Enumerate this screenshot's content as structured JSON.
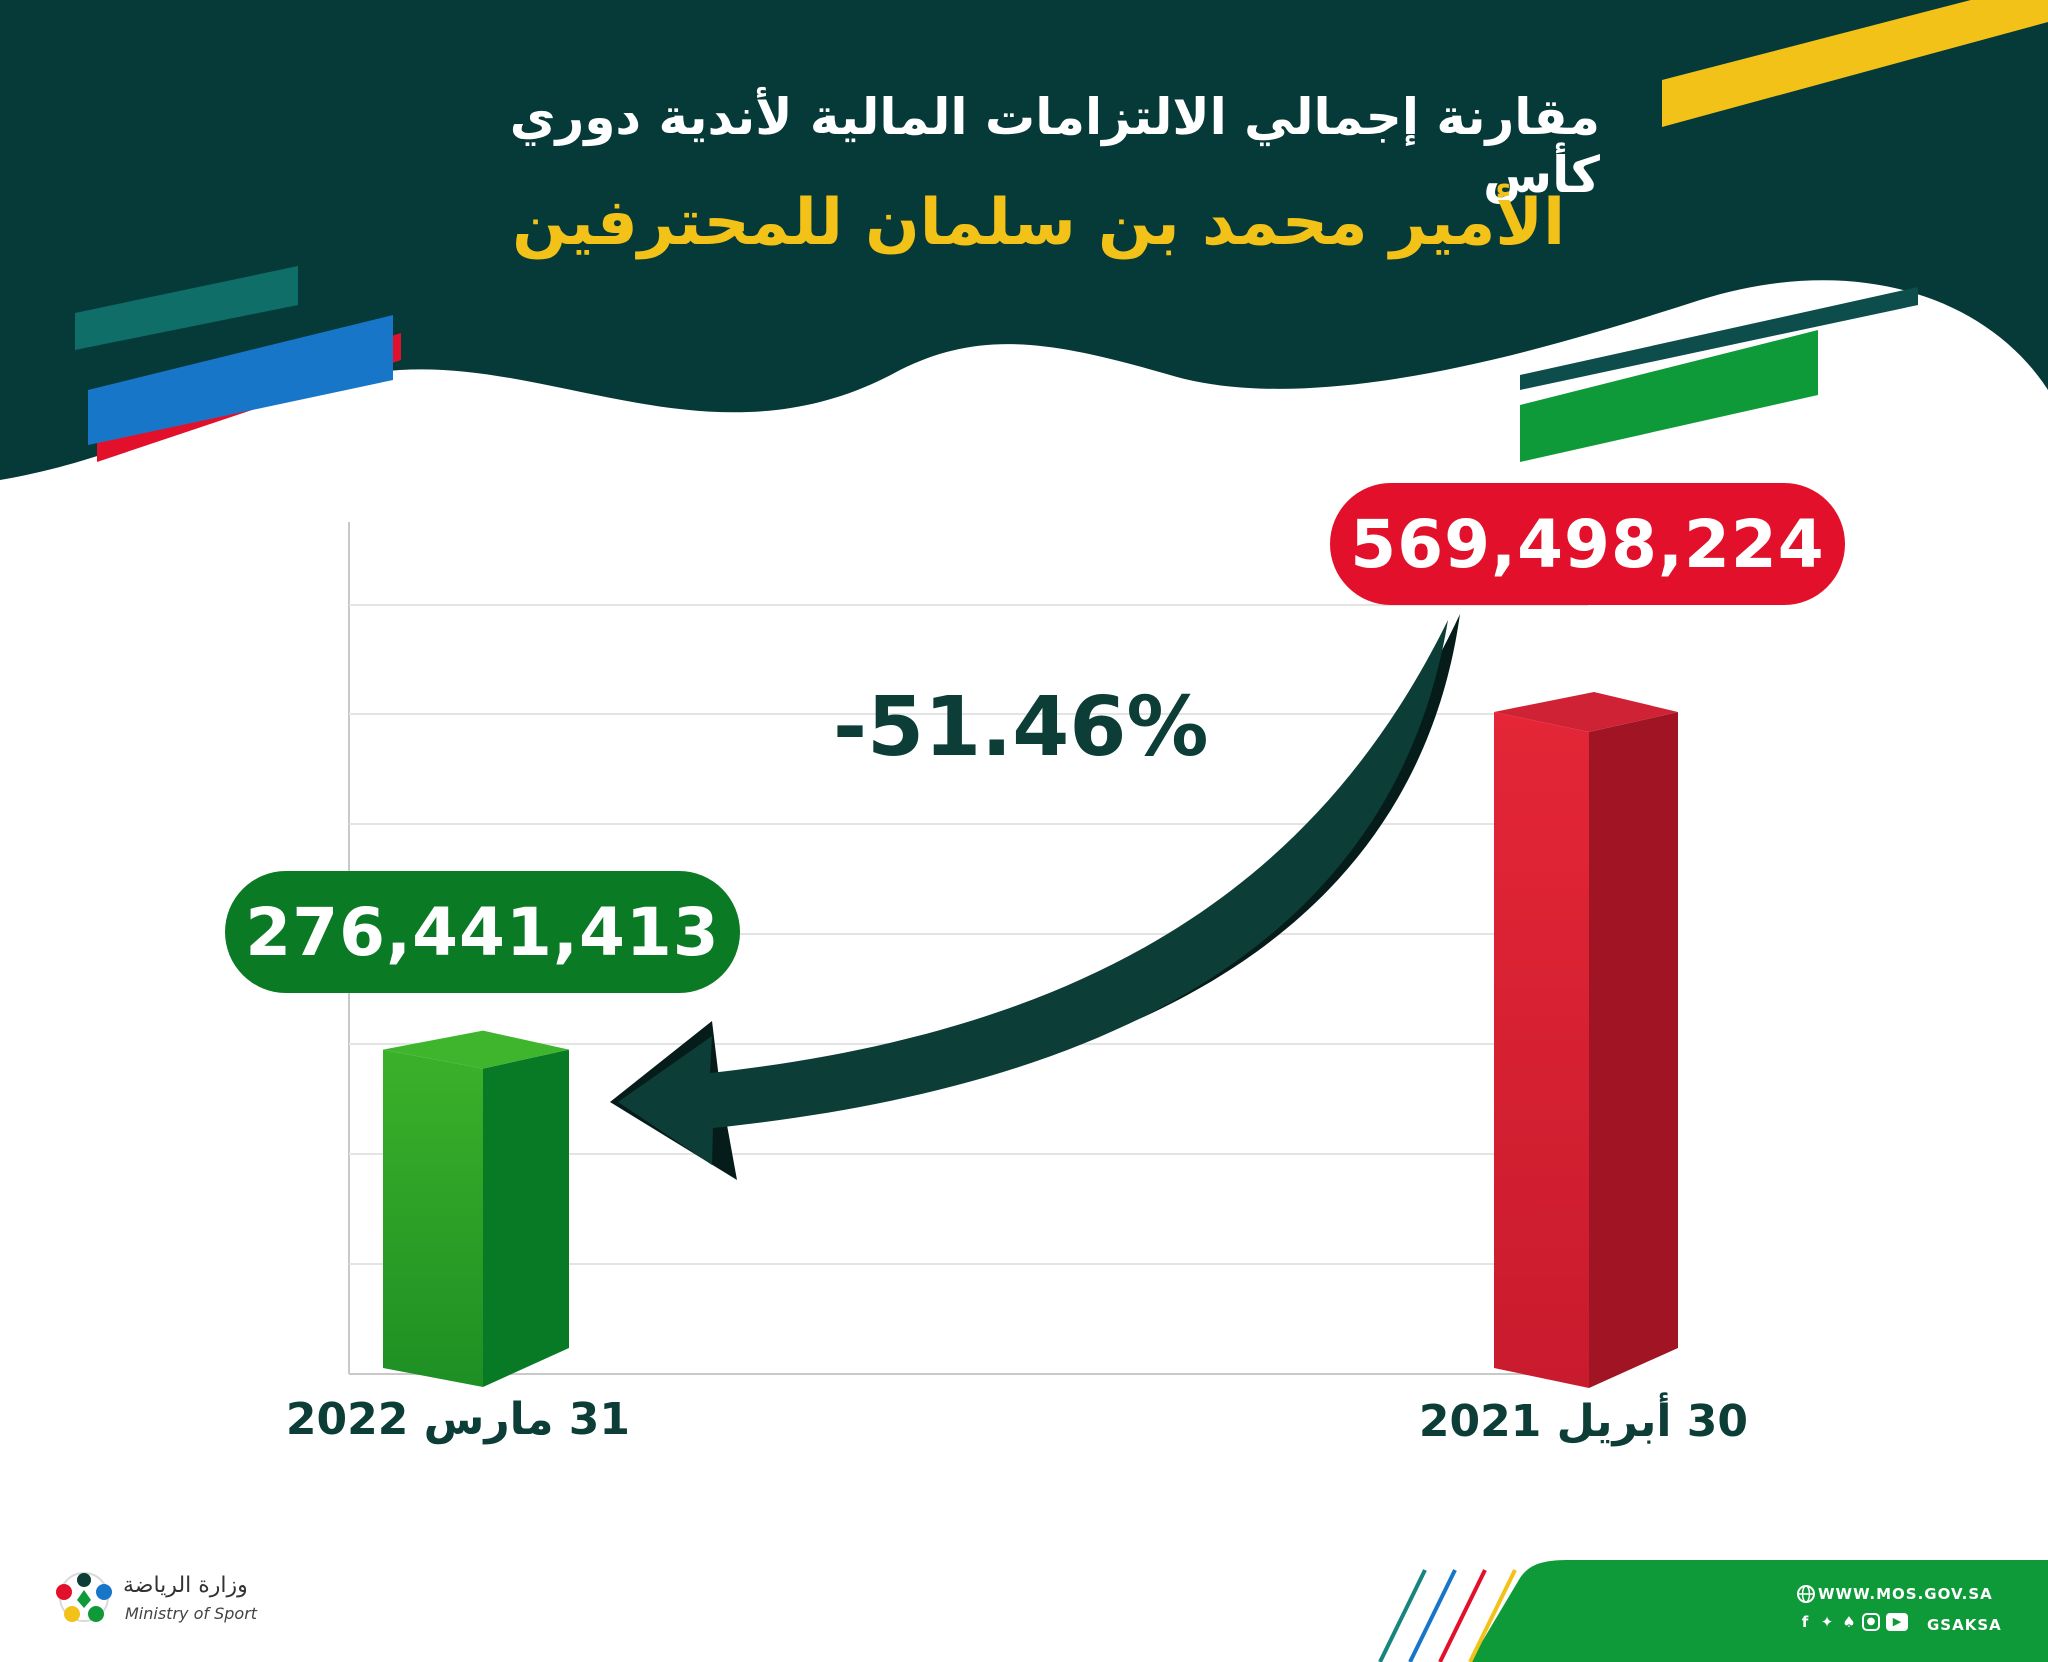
{
  "header": {
    "title_line1": "مقارنة إجمالي الالتزامات المالية لأندية دوري كأس",
    "title_line2": "الأمير محمد بن سلمان للمحترفين"
  },
  "colors": {
    "dark_green": "#063a38",
    "yellow": "#f2c219",
    "red": "#e3102b",
    "green": "#0a7a24",
    "teal_text": "#0c3d37"
  },
  "chart_data": {
    "type": "bar",
    "categories": [
      "31 مارس 2022",
      "30 أبريل 2021"
    ],
    "values": [
      276441413,
      569498224
    ],
    "value_labels": [
      "276,441,413",
      "569,498,224"
    ],
    "bar_colors": [
      "#2ea82a",
      "#d81f33"
    ],
    "change_annotation": "-51.46%",
    "grid": true,
    "title": "",
    "xlabel": "",
    "ylabel": ""
  },
  "footer": {
    "ministry_ar": "وزارة الرياضة",
    "ministry_en": "Ministry of Sport",
    "website": "WWW.MOS.GOV.SA",
    "handle": "GSAKSA",
    "social_icons": [
      "facebook-icon",
      "twitter-icon",
      "snapchat-icon",
      "instagram-icon",
      "youtube-icon"
    ]
  }
}
